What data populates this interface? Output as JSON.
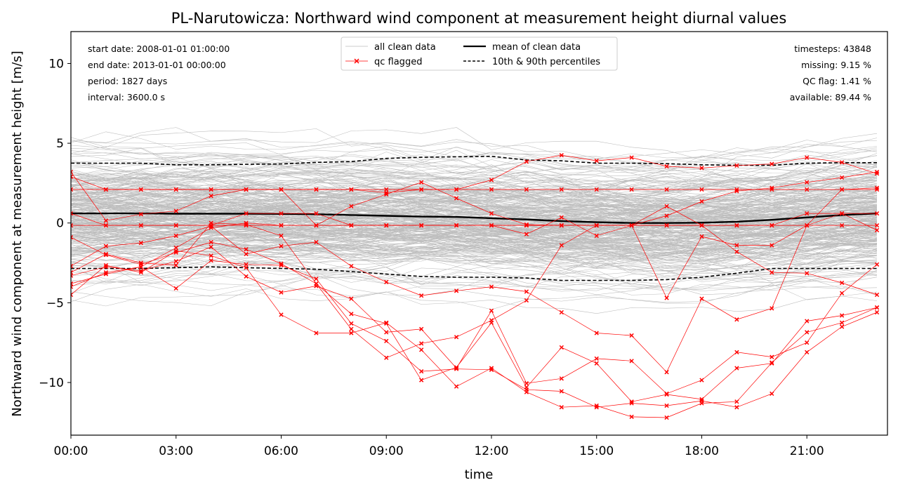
{
  "chart_data": {
    "type": "line",
    "title": "PL-Narutowicza: Northward wind component at measurement height diurnal values",
    "xlabel": "time",
    "ylabel": "Northward wind component at measurement height [m/s]",
    "xlim": [
      0,
      23.3
    ],
    "ylim": [
      -13.3,
      12.0
    ],
    "x_ticks": [
      {
        "value": 0,
        "label": "00:00"
      },
      {
        "value": 3,
        "label": "03:00"
      },
      {
        "value": 6,
        "label": "06:00"
      },
      {
        "value": 9,
        "label": "09:00"
      },
      {
        "value": 12,
        "label": "12:00"
      },
      {
        "value": 15,
        "label": "15:00"
      },
      {
        "value": 18,
        "label": "18:00"
      },
      {
        "value": 21,
        "label": "21:00"
      }
    ],
    "y_ticks": [
      {
        "value": 10,
        "label": "10"
      },
      {
        "value": 5,
        "label": "5"
      },
      {
        "value": 0,
        "label": "0"
      },
      {
        "value": -5,
        "label": "−5"
      },
      {
        "value": -10,
        "label": "−10"
      }
    ],
    "grid": false,
    "legend_position": "top-center",
    "legend": [
      {
        "label": "all clean data",
        "style": "thin-gray"
      },
      {
        "label": "qc flagged",
        "style": "red-x"
      },
      {
        "label": "mean of clean data",
        "style": "thick-black"
      },
      {
        "label": "10th & 90th percentiles",
        "style": "dashed-black"
      }
    ],
    "info_left": [
      "start date: 2008-01-01 01:00:00",
      "end date: 2013-01-01 00:00:00",
      "period: 1827 days",
      "interval: 3600.0 s"
    ],
    "info_right": [
      "timesteps: 43848",
      "missing: 9.15 %",
      "QC flag: 1.41 %",
      "available: 89.44 %"
    ],
    "x": [
      0,
      1,
      2,
      3,
      4,
      5,
      6,
      7,
      8,
      9,
      10,
      11,
      12,
      13,
      14,
      15,
      16,
      17,
      18,
      19,
      20,
      21,
      22,
      23
    ],
    "series": [
      {
        "name": "mean of clean data",
        "color": "#000000",
        "values": [
          0.6,
          0.6,
          0.6,
          0.58,
          0.58,
          0.58,
          0.57,
          0.55,
          0.5,
          0.45,
          0.4,
          0.38,
          0.3,
          0.22,
          0.12,
          0.05,
          0.0,
          0.0,
          0.02,
          0.08,
          0.2,
          0.35,
          0.5,
          0.6
        ]
      },
      {
        "name": "10th & 90th percentiles",
        "color": "#000000",
        "values": [
          3.75,
          3.75,
          3.75,
          3.65,
          3.65,
          3.68,
          3.7,
          3.8,
          3.85,
          4.05,
          4.12,
          4.15,
          4.18,
          3.95,
          3.9,
          3.75,
          3.75,
          3.72,
          3.65,
          3.62,
          3.62,
          3.75,
          3.78,
          3.78
        ]
      },
      {
        "name": "10th & 90th percentiles",
        "color": "#000000",
        "values": [
          -2.85,
          -2.85,
          -2.85,
          -2.8,
          -2.75,
          -2.8,
          -2.85,
          -2.9,
          -3.05,
          -3.2,
          -3.35,
          -3.4,
          -3.4,
          -3.45,
          -3.6,
          -3.6,
          -3.6,
          -3.55,
          -3.4,
          -3.15,
          -2.85,
          -2.85,
          -2.85,
          -2.85
        ]
      },
      {
        "name": "qc flagged",
        "color": "#ff0000",
        "values": [
          2.1,
          2.1,
          2.1,
          2.1,
          2.1,
          2.1,
          2.1,
          2.1,
          2.1,
          2.1,
          2.1,
          2.1,
          2.1,
          2.1,
          2.1,
          2.1,
          2.1,
          2.1,
          2.1,
          2.1,
          2.1,
          2.1,
          2.1,
          2.1
        ]
      },
      {
        "name": "qc flagged",
        "color": "#ff0000",
        "values": [
          -0.15,
          -0.15,
          -0.15,
          -0.15,
          -0.15,
          -0.15,
          -0.15,
          -0.15,
          -0.15,
          -0.15,
          -0.15,
          -0.15,
          -0.15,
          -0.15,
          -0.15,
          -0.15,
          -0.15,
          -0.15,
          -0.15,
          -0.15,
          -0.15,
          -0.15,
          -0.15,
          -0.15
        ]
      },
      {
        "name": "qc flagged",
        "color": "#ff0000",
        "values": [
          3.2,
          0.15,
          0.55,
          0.75,
          1.7,
          2.1,
          2.1,
          2.1,
          2.1,
          1.9,
          2.1,
          2.1,
          2.7,
          3.85,
          4.25,
          3.9,
          4.1,
          3.55,
          3.45,
          3.6,
          3.7,
          4.1,
          3.8,
          3.1
        ]
      },
      {
        "name": "qc flagged",
        "color": "#ff0000",
        "values": [
          2.9,
          2.1,
          2.1,
          2.1,
          2.1,
          2.1,
          2.1,
          -0.15,
          1.05,
          1.8,
          2.55,
          1.55,
          0.6,
          -0.1,
          -0.15,
          -0.15,
          -0.15,
          0.45,
          1.35,
          2.0,
          2.2,
          2.55,
          2.85,
          3.2
        ]
      },
      {
        "name": "qc flagged",
        "color": "#ff0000",
        "values": [
          0.6,
          -0.15,
          -0.15,
          -0.15,
          -0.15,
          0.6,
          0.6,
          0.6,
          -0.15,
          -0.15,
          -0.15,
          -0.15,
          -0.15,
          -0.7,
          0.35,
          -0.8,
          -0.15,
          1.05,
          -0.15,
          -0.15,
          -0.15,
          0.6,
          0.6,
          0.6
        ]
      },
      {
        "name": "qc flagged",
        "color": "#ff0000",
        "values": [
          -0.9,
          -2.0,
          -2.6,
          -1.85,
          -1.2,
          -1.65,
          -2.55,
          -3.8,
          -6.65,
          -8.45,
          -7.55,
          -7.15,
          -6.1,
          -4.85,
          -1.4,
          -0.15,
          -0.15,
          -4.7,
          -0.85,
          -1.4,
          -1.4,
          -0.15,
          2.1,
          2.2
        ]
      },
      {
        "name": "qc flagged",
        "color": "#ff0000",
        "values": [
          -2.7,
          -1.45,
          -1.25,
          -0.8,
          -0.2,
          -1.95,
          -1.45,
          -1.2,
          -2.7,
          -3.7,
          -4.55,
          -4.25,
          -4.0,
          -4.3,
          -5.6,
          -6.9,
          -7.05,
          -9.35,
          -4.75,
          -6.05,
          -5.35,
          -0.15,
          0.6,
          -0.45
        ]
      },
      {
        "name": "qc flagged",
        "color": "#ff0000",
        "values": [
          -3.3,
          -2.75,
          -3.0,
          -2.4,
          -1.5,
          -3.35,
          -4.35,
          -3.95,
          -4.75,
          -6.85,
          -6.65,
          -9.1,
          -5.5,
          -10.05,
          -9.75,
          -8.5,
          -8.65,
          -10.7,
          -9.85,
          -8.1,
          -8.4,
          -7.5,
          -4.4,
          -2.6
        ]
      },
      {
        "name": "qc flagged",
        "color": "#ff0000",
        "values": [
          -3.8,
          -3.2,
          -2.75,
          -4.1,
          -2.35,
          -2.6,
          -2.65,
          -3.5,
          -6.3,
          -7.4,
          -9.3,
          -9.15,
          -9.2,
          -10.45,
          -10.55,
          -11.55,
          -11.3,
          -11.45,
          -11.15,
          -11.55,
          -10.7,
          -8.1,
          -6.5,
          -5.6
        ]
      },
      {
        "name": "qc flagged",
        "color": "#ff0000",
        "values": [
          -4.5,
          -2.65,
          -3.1,
          -1.75,
          -2.05,
          -2.8,
          -5.75,
          -6.9,
          -6.9,
          -6.25,
          -7.95,
          -10.25,
          -9.1,
          -10.6,
          -11.55,
          -11.45,
          -12.15,
          -12.2,
          -11.3,
          -11.2,
          -8.75,
          -6.85,
          -6.25,
          -5.3
        ]
      },
      {
        "name": "qc flagged",
        "color": "#ff0000",
        "values": [
          -3.1,
          -1.95,
          -2.5,
          -2.65,
          0.0,
          -0.1,
          -0.8,
          -3.8,
          -5.7,
          -6.3,
          -9.85,
          -9.05,
          -6.25,
          -10.3,
          -7.8,
          -8.8,
          -11.2,
          -10.75,
          -11.05,
          -9.1,
          -8.8,
          -6.15,
          -5.8,
          -5.3
        ]
      },
      {
        "name": "qc flagged",
        "color": "#ff0000",
        "values": [
          -4.0,
          -3.1,
          -2.75,
          -1.55,
          -0.3,
          0.0,
          -0.15,
          -0.15,
          -0.15,
          -0.15,
          -0.15,
          -0.15,
          -0.15,
          -0.15,
          -0.15,
          -0.15,
          -0.15,
          -0.15,
          -0.15,
          -1.8,
          -3.1,
          -3.15,
          -3.75,
          -4.5
        ]
      }
    ]
  }
}
